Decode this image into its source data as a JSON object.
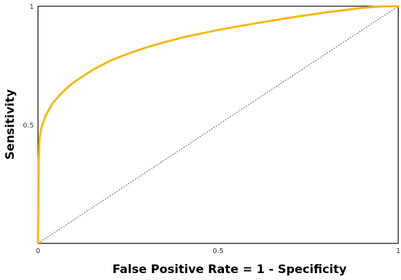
{
  "chart_data": {
    "type": "line",
    "title": "",
    "xlabel": "False Positive Rate = 1 - Specificity",
    "ylabel": "Sensitivity",
    "xlim": [
      0,
      1
    ],
    "ylim": [
      0,
      1
    ],
    "x_ticks": [
      {
        "value": 0,
        "label": "0"
      },
      {
        "value": 0.5,
        "label": "0.5"
      },
      {
        "value": 1,
        "label": "1"
      }
    ],
    "y_ticks": [
      {
        "value": 0.5,
        "label": "0.5"
      },
      {
        "value": 1,
        "label": "1"
      }
    ],
    "grid": false,
    "legend": "none",
    "series": [
      {
        "style": "solid",
        "color": "#f5b800",
        "x": [
          0,
          0.001,
          0.002,
          0.004,
          0.007,
          0.01,
          0.02,
          0.04,
          0.06,
          0.08,
          0.1,
          0.15,
          0.2,
          0.25,
          0.3,
          0.35,
          0.4,
          0.5,
          0.6,
          0.7,
          0.8,
          0.9,
          0.95,
          1
        ],
        "y": [
          0,
          0.2,
          0.35,
          0.44,
          0.47,
          0.49,
          0.535,
          0.59,
          0.625,
          0.655,
          0.68,
          0.73,
          0.77,
          0.8,
          0.826,
          0.848,
          0.868,
          0.9,
          0.927,
          0.952,
          0.974,
          0.993,
          0.999,
          1
        ]
      },
      {
        "style": "dashed",
        "color": "#555555",
        "x": [
          0,
          1
        ],
        "y": [
          0,
          1
        ]
      }
    ]
  }
}
